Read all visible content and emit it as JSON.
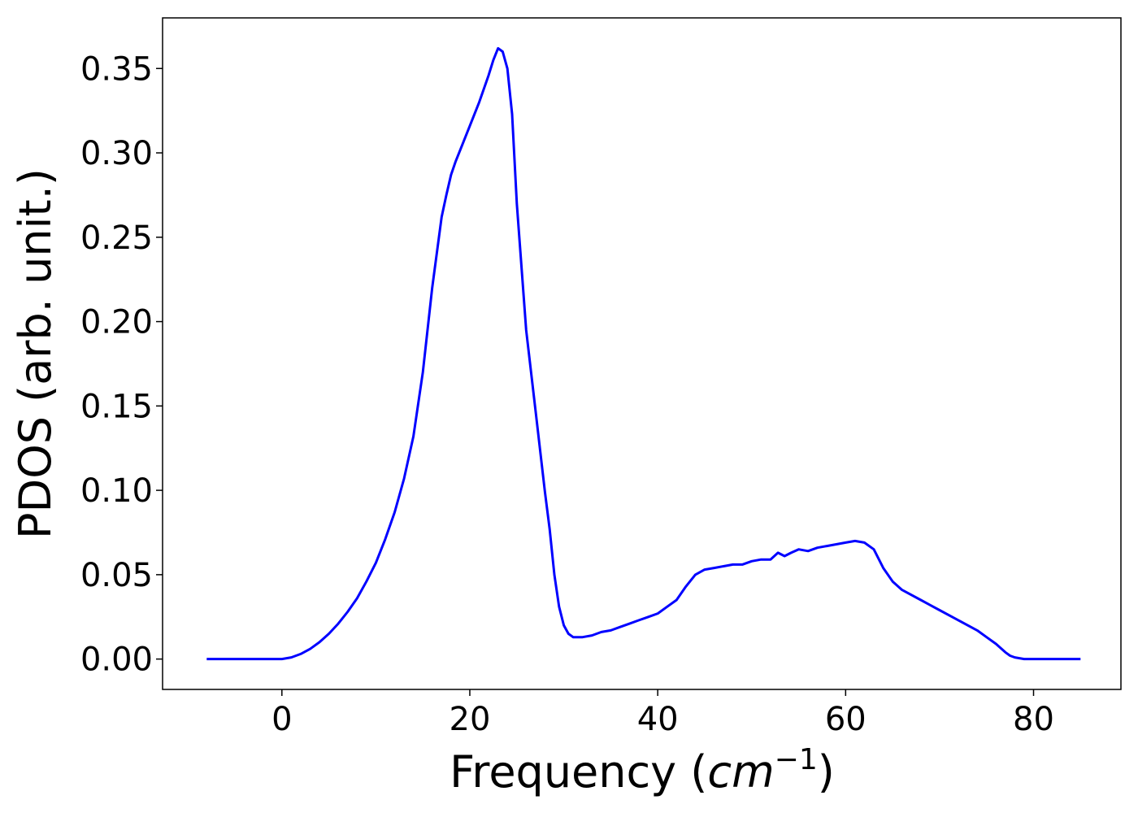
{
  "chart_data": {
    "type": "line",
    "title": "",
    "xlabel_main": "Frequency (",
    "xlabel_unit": "cm",
    "xlabel_exp": "−1",
    "xlabel_close": ")",
    "ylabel": "PDOS (arb. unit.)",
    "xlim": [
      -12.7,
      89.3
    ],
    "ylim": [
      -0.018,
      0.38
    ],
    "xticks": [
      0,
      20,
      40,
      60,
      80
    ],
    "xtick_labels": [
      "0",
      "20",
      "40",
      "60",
      "80"
    ],
    "yticks": [
      0.0,
      0.05,
      0.1,
      0.15,
      0.2,
      0.25,
      0.3,
      0.35
    ],
    "ytick_labels": [
      "0.00",
      "0.05",
      "0.10",
      "0.15",
      "0.20",
      "0.25",
      "0.30",
      "0.35"
    ],
    "grid": false,
    "line_color": "#0000ff",
    "series": [
      {
        "x": [
          -8.0,
          -4.0,
          0.0,
          1.0,
          2.0,
          3.0,
          4.0,
          5.0,
          6.0,
          7.0,
          8.0,
          9.0,
          10.0,
          11.0,
          12.0,
          13.0,
          14.0,
          15.0,
          16.0,
          17.0,
          17.5,
          18.0,
          18.5,
          19.0,
          20.0,
          21.0,
          22.0,
          22.5,
          23.0,
          23.5,
          24.0,
          24.5,
          25.0,
          26.0,
          27.0,
          28.0,
          28.5,
          29.0,
          29.5,
          30.0,
          30.5,
          31.0,
          32.0,
          33.0,
          34.0,
          35.0,
          36.0,
          37.0,
          38.0,
          39.0,
          40.0,
          41.0,
          42.0,
          43.0,
          44.0,
          45.0,
          46.0,
          47.0,
          48.0,
          49.0,
          50.0,
          51.0,
          52.0,
          52.8,
          53.5,
          54.2,
          55.0,
          56.0,
          57.0,
          58.0,
          59.0,
          60.0,
          61.0,
          62.0,
          63.0,
          64.0,
          65.0,
          66.0,
          68.0,
          70.0,
          72.0,
          74.0,
          75.0,
          76.0,
          77.0,
          77.5,
          78.0,
          79.0,
          85.0
        ],
        "y": [
          0.0,
          0.0,
          0.0,
          0.001,
          0.003,
          0.006,
          0.01,
          0.015,
          0.021,
          0.028,
          0.036,
          0.046,
          0.057,
          0.071,
          0.087,
          0.107,
          0.132,
          0.17,
          0.22,
          0.262,
          0.275,
          0.287,
          0.295,
          0.302,
          0.316,
          0.33,
          0.346,
          0.355,
          0.362,
          0.36,
          0.35,
          0.323,
          0.27,
          0.195,
          0.147,
          0.099,
          0.077,
          0.05,
          0.031,
          0.02,
          0.015,
          0.013,
          0.013,
          0.014,
          0.016,
          0.017,
          0.019,
          0.021,
          0.023,
          0.025,
          0.027,
          0.031,
          0.035,
          0.043,
          0.05,
          0.053,
          0.054,
          0.055,
          0.056,
          0.056,
          0.058,
          0.059,
          0.059,
          0.063,
          0.061,
          0.063,
          0.065,
          0.064,
          0.066,
          0.067,
          0.068,
          0.069,
          0.07,
          0.069,
          0.065,
          0.054,
          0.046,
          0.041,
          0.035,
          0.029,
          0.023,
          0.017,
          0.013,
          0.009,
          0.004,
          0.002,
          0.001,
          0.0,
          0.0
        ]
      }
    ]
  }
}
